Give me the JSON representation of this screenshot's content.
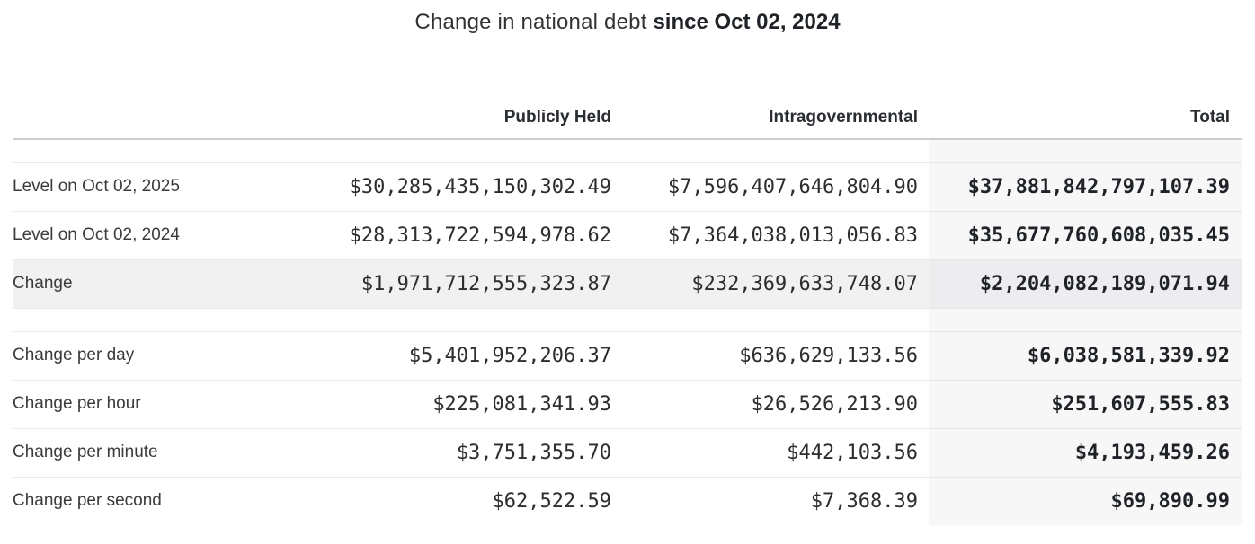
{
  "title": {
    "text": "Change in national debt ",
    "emphasis": "since Oct 02, 2024"
  },
  "table": {
    "headers": {
      "publicly_held": "Publicly Held",
      "intragovernmental": "Intragovernmental",
      "total": "Total"
    },
    "rows": [
      {
        "label": "Level on Oct 02, 2025",
        "publicly_held": "$30,285,435,150,302.49",
        "intragovernmental": "$7,596,407,646,804.90",
        "total": "$37,881,842,797,107.39"
      },
      {
        "label": "Level on Oct 02, 2024",
        "publicly_held": "$28,313,722,594,978.62",
        "intragovernmental": "$7,364,038,013,056.83",
        "total": "$35,677,760,608,035.45"
      },
      {
        "label": "Change",
        "publicly_held": "$1,971,712,555,323.87",
        "intragovernmental": "$232,369,633,748.07",
        "total": "$2,204,082,189,071.94"
      },
      {
        "label": "Change per day",
        "publicly_held": "$5,401,952,206.37",
        "intragovernmental": "$636,629,133.56",
        "total": "$6,038,581,339.92"
      },
      {
        "label": "Change per hour",
        "publicly_held": "$225,081,341.93",
        "intragovernmental": "$26,526,213.90",
        "total": "$251,607,555.83"
      },
      {
        "label": "Change per minute",
        "publicly_held": "$3,751,355.70",
        "intragovernmental": "$442,103.56",
        "total": "$4,193,459.26"
      },
      {
        "label": "Change per second",
        "publicly_held": "$62,522.59",
        "intragovernmental": "$7,368.39",
        "total": "$69,890.99"
      }
    ]
  },
  "colors": {
    "total_column_bg": "#f7f7f8",
    "highlight_row_bg": "#f1f1f2",
    "highlight_total_bg": "#ededef",
    "header_border": "#cdcdcf",
    "row_border": "#e8e8ea",
    "label_text": "#3b3b3b",
    "number_text": "#2d2d2d",
    "strong_text": "#1f2328"
  }
}
